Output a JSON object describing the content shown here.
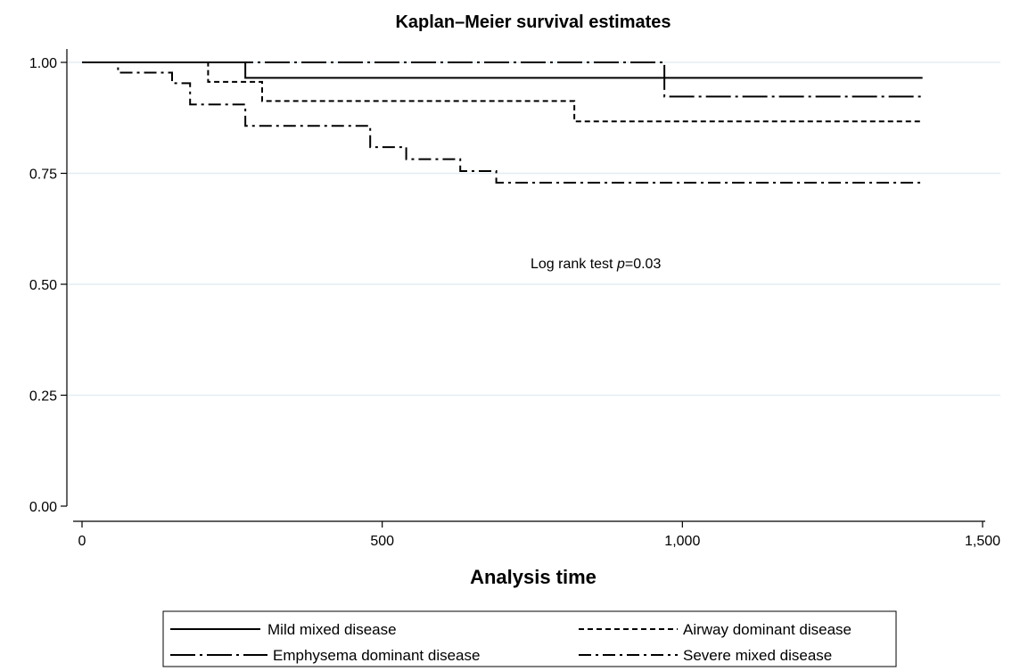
{
  "chart_data": {
    "type": "line",
    "step": true,
    "title": "Kaplan–Meier survival estimates",
    "xlabel": "Analysis time",
    "ylabel": "",
    "xlim": [
      0,
      1500
    ],
    "ylim": [
      0,
      1
    ],
    "grid": true,
    "x_ticks": [
      0,
      500,
      1000,
      1500
    ],
    "x_tick_labels": [
      "0",
      "500",
      "1,000",
      "1,500"
    ],
    "y_ticks": [
      0,
      0.25,
      0.5,
      0.75,
      1.0
    ],
    "y_tick_labels": [
      "0.00",
      "0.25",
      "0.50",
      "0.75",
      "1.00"
    ],
    "annotation": {
      "prefix": "Log rank test ",
      "italic": "p",
      "suffix": "=0.03"
    },
    "legend_position": "bottom",
    "series": [
      {
        "name": "Mild mixed disease",
        "dash": "solid",
        "x": [
          0,
          272,
          1400
        ],
        "y": [
          1.0,
          0.965,
          0.965
        ]
      },
      {
        "name": "Airway dominant disease",
        "dash": "short-dash",
        "x": [
          0,
          210,
          300,
          820,
          1400
        ],
        "y": [
          1.0,
          0.956,
          0.913,
          0.867,
          0.867
        ]
      },
      {
        "name": "Emphysema dominant disease",
        "dash": "long-dash-dot",
        "x": [
          0,
          970,
          1400
        ],
        "y": [
          1.0,
          0.923,
          0.923
        ]
      },
      {
        "name": "Severe mixed disease",
        "dash": "dash-dot",
        "x": [
          0,
          60,
          150,
          180,
          272,
          480,
          540,
          630,
          690,
          1400
        ],
        "y": [
          1.0,
          0.977,
          0.953,
          0.905,
          0.857,
          0.809,
          0.782,
          0.755,
          0.729,
          0.729
        ]
      }
    ]
  }
}
